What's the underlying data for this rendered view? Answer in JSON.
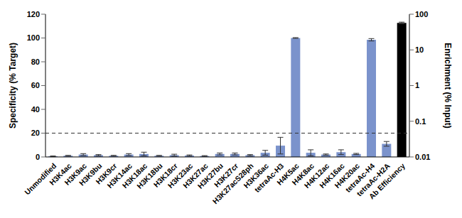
{
  "chart_data": {
    "type": "bar",
    "y_label": "Specificity (% Target)",
    "y2_label": "Enrichment (% Input)",
    "categories": [
      "Unmodified",
      "H3K4ac",
      "H3K9ac",
      "H3K9bu",
      "H3K9cr",
      "H3K14ac",
      "H3K18ac",
      "H3K18bu",
      "H3K18cr",
      "H3K23ac",
      "H3K27ac",
      "H3K27bu",
      "H3K27cr",
      "H3K27acS28ph",
      "H3K36ac",
      "tetraAc-H3",
      "H4K5ac",
      "H4K8ac",
      "H4K12ac",
      "H4K16ac",
      "H4K20ac",
      "tetraAc-H4",
      "tetraAc-H2A",
      "Ab Efficiency"
    ],
    "series": [
      {
        "color": "#7b93cc",
        "values": [
          0.5,
          1,
          2,
          1.5,
          1,
          2,
          2.5,
          1,
          1.5,
          1.2,
          0.8,
          2.5,
          2.5,
          1.5,
          3.5,
          9.5,
          100,
          3.5,
          2,
          4,
          2.5,
          98.5,
          11,
          null
        ],
        "errors": [
          0.3,
          0.3,
          0.8,
          0.5,
          0.3,
          0.8,
          1.5,
          0.3,
          0.8,
          0.5,
          0.3,
          0.8,
          0.8,
          0.5,
          2,
          7,
          0.3,
          2.5,
          0.5,
          2,
          0.5,
          1,
          2,
          null
        ]
      },
      {
        "color": "#000000",
        "axis": "y2",
        "values": [
          null,
          null,
          null,
          null,
          null,
          null,
          null,
          null,
          null,
          null,
          null,
          null,
          null,
          null,
          null,
          null,
          null,
          null,
          null,
          null,
          null,
          null,
          null,
          57
        ],
        "errors": [
          null,
          null,
          null,
          null,
          null,
          null,
          null,
          null,
          null,
          null,
          null,
          null,
          null,
          null,
          null,
          null,
          null,
          null,
          null,
          null,
          null,
          null,
          null,
          3
        ]
      }
    ],
    "ylim": [
      0,
      120
    ],
    "yticks": [
      0,
      20,
      40,
      60,
      80,
      100,
      120
    ],
    "y2lim": [
      0.01,
      100
    ],
    "y2ticks": [
      0.01,
      0.1,
      1,
      10,
      100
    ],
    "log": "y2",
    "grid": false,
    "reference_lines": [
      {
        "y": 20,
        "line_style": "dashed"
      }
    ]
  }
}
